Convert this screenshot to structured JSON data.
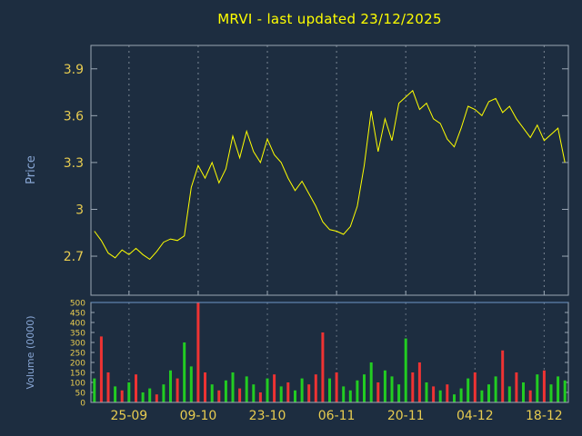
{
  "title": "MRVI - last updated 23/12/2025",
  "colors": {
    "background": "#1d2d40",
    "plot_border": "#9aa7b4",
    "volume_top_line": "#6e96c8",
    "grid": "#7a8694",
    "title": "#ffff00",
    "tick_label": "#e8cc50",
    "axis_label": "#88a6d4",
    "price_line": "#ffff00",
    "volume_up": "#22cc22",
    "volume_down": "#ee3333"
  },
  "chart_data": [
    {
      "type": "line",
      "title": "MRVI - last updated 23/12/2025",
      "ylabel": "Price",
      "xlabel": "",
      "legend": "none",
      "grid": "vertical-dashed",
      "ylim": [
        2.45,
        4.05
      ],
      "yticks": [
        2.7,
        3,
        3.3,
        3.6,
        3.9
      ],
      "xtick_labels": [
        "25-09",
        "09-10",
        "23-10",
        "06-11",
        "20-11",
        "04-12",
        "18-12"
      ],
      "xtick_indices": [
        5,
        15,
        25,
        35,
        45,
        55,
        65
      ],
      "values": [
        2.86,
        2.8,
        2.72,
        2.69,
        2.74,
        2.71,
        2.75,
        2.71,
        2.68,
        2.73,
        2.79,
        2.81,
        2.8,
        2.83,
        3.14,
        3.28,
        3.2,
        3.3,
        3.17,
        3.26,
        3.47,
        3.33,
        3.5,
        3.37,
        3.3,
        3.45,
        3.35,
        3.3,
        3.2,
        3.12,
        3.18,
        3.1,
        3.02,
        2.92,
        2.87,
        2.86,
        2.84,
        2.89,
        3.02,
        3.28,
        3.63,
        3.37,
        3.58,
        3.44,
        3.68,
        3.72,
        3.76,
        3.64,
        3.68,
        3.58,
        3.55,
        3.45,
        3.4,
        3.52,
        3.66,
        3.64,
        3.6,
        3.69,
        3.71,
        3.62,
        3.66,
        3.58,
        3.52,
        3.46,
        3.54,
        3.44,
        3.48,
        3.52,
        3.3
      ]
    },
    {
      "type": "bar",
      "ylabel": "Volume (0000)",
      "xlabel": "",
      "grid": "vertical-dashed",
      "ylim": [
        0,
        500
      ],
      "yticks": [
        0,
        50,
        100,
        150,
        200,
        250,
        300,
        350,
        400,
        450,
        500
      ],
      "values": [
        120,
        330,
        150,
        80,
        60,
        100,
        140,
        50,
        70,
        40,
        90,
        160,
        120,
        300,
        180,
        500,
        150,
        90,
        60,
        110,
        150,
        70,
        130,
        90,
        50,
        120,
        140,
        80,
        100,
        60,
        120,
        90,
        140,
        350,
        120,
        150,
        80,
        60,
        110,
        140,
        200,
        100,
        160,
        130,
        90,
        320,
        150,
        200,
        100,
        80,
        60,
        90,
        40,
        70,
        120,
        150,
        60,
        90,
        130,
        260,
        80,
        150,
        100,
        60,
        140,
        160,
        90,
        130,
        110
      ],
      "bar_colors": [
        "g",
        "r",
        "r",
        "g",
        "r",
        "g",
        "r",
        "g",
        "g",
        "r",
        "g",
        "g",
        "r",
        "g",
        "g",
        "r",
        "r",
        "g",
        "r",
        "g",
        "g",
        "r",
        "g",
        "g",
        "r",
        "g",
        "r",
        "g",
        "r",
        "g",
        "g",
        "r",
        "r",
        "r",
        "g",
        "r",
        "g",
        "g",
        "g",
        "g",
        "g",
        "r",
        "g",
        "g",
        "g",
        "g",
        "r",
        "r",
        "g",
        "r",
        "g",
        "r",
        "g",
        "g",
        "g",
        "r",
        "g",
        "g",
        "g",
        "r",
        "g",
        "r",
        "g",
        "r",
        "g",
        "r",
        "g",
        "g",
        "g"
      ]
    }
  ]
}
